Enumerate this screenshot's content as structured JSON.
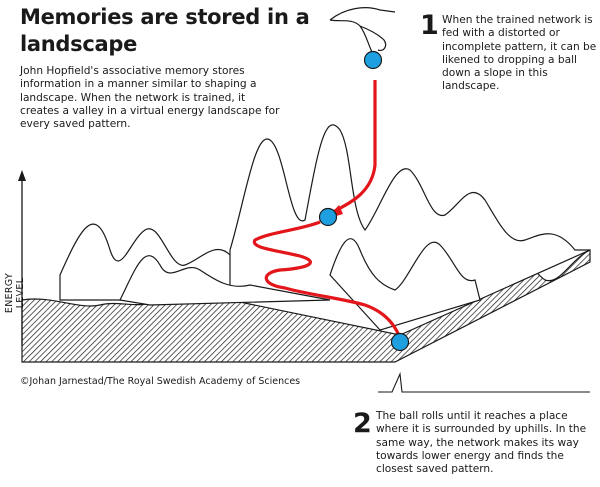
{
  "title": "Memories are stored in a landscape",
  "intro": "John Hopfield's associative memory stores information in a manner similar to shaping a landscape. When the network is trained, it creates a valley in a virtual energy landscape for every saved pattern.",
  "steps": [
    {
      "number": "1",
      "text": "When the trained network is fed with a distorted or incomplete pattern, it can be likened to dropping a ball down a slope in this landscape."
    },
    {
      "number": "2",
      "text": "The ball rolls until it reaches a place where it is surrounded by uphills. In the same way, the network makes its way towards lower energy and finds the closest saved pattern."
    }
  ],
  "axis_label": "ENERGY LEVEL",
  "credit": "©Johan Jarnestad/The Royal Swedish Academy of Sciences",
  "colors": {
    "ball": "#1ea0e0",
    "path": "#e3161b",
    "ink": "#1a1a1a"
  }
}
